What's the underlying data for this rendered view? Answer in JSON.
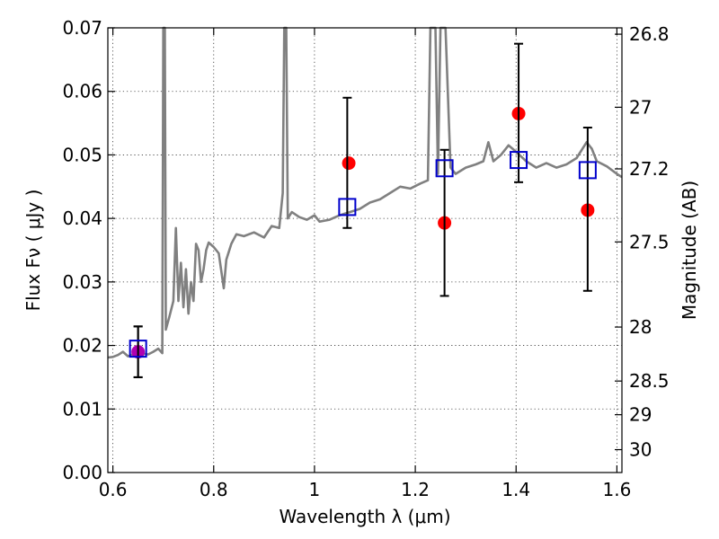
{
  "chart_data": {
    "type": "scatter",
    "xlabel": "Wavelength  λ (μm)",
    "ylabel": "Flux  Fν  ( μJy )",
    "y2label": "Magnitude (AB)",
    "xlim": [
      0.59,
      1.61
    ],
    "ylim": [
      0.0,
      0.07
    ],
    "grid": true,
    "x_ticks": [
      {
        "value": 0.6,
        "label": "0.6"
      },
      {
        "value": 0.8,
        "label": "0.8"
      },
      {
        "value": 1.0,
        "label": "1"
      },
      {
        "value": 1.2,
        "label": "1.2"
      },
      {
        "value": 1.4,
        "label": "1.4"
      },
      {
        "value": 1.6,
        "label": "1.6"
      }
    ],
    "y_ticks": [
      {
        "value": 0.0,
        "label": "0.00"
      },
      {
        "value": 0.01,
        "label": "0.01"
      },
      {
        "value": 0.02,
        "label": "0.02"
      },
      {
        "value": 0.03,
        "label": "0.03"
      },
      {
        "value": 0.04,
        "label": "0.04"
      },
      {
        "value": 0.05,
        "label": "0.05"
      },
      {
        "value": 0.06,
        "label": "0.06"
      },
      {
        "value": 0.07,
        "label": "0.07"
      }
    ],
    "right_ticks": [
      {
        "flux": 0.069,
        "label": "26.8"
      },
      {
        "flux": 0.0575,
        "label": "27"
      },
      {
        "flux": 0.0478,
        "label": "27.2"
      },
      {
        "flux": 0.0363,
        "label": "27.5"
      },
      {
        "flux": 0.0229,
        "label": "28"
      },
      {
        "flux": 0.0144,
        "label": "28.5"
      },
      {
        "flux": 0.0091,
        "label": "29"
      },
      {
        "flux": 0.0036,
        "label": "30"
      }
    ],
    "series": [
      {
        "kind": "line",
        "color": "#808080",
        "points": [
          [
            0.59,
            0.0181
          ],
          [
            0.6,
            0.0182
          ],
          [
            0.61,
            0.0185
          ],
          [
            0.62,
            0.019
          ],
          [
            0.63,
            0.0183
          ],
          [
            0.64,
            0.0186
          ],
          [
            0.65,
            0.019
          ],
          [
            0.66,
            0.0187
          ],
          [
            0.67,
            0.0186
          ],
          [
            0.68,
            0.019
          ],
          [
            0.69,
            0.0195
          ],
          [
            0.698,
            0.0188
          ],
          [
            0.7,
            0.07
          ],
          [
            0.703,
            0.07
          ],
          [
            0.705,
            0.0225
          ],
          [
            0.712,
            0.0245
          ],
          [
            0.72,
            0.027
          ],
          [
            0.725,
            0.0385
          ],
          [
            0.73,
            0.027
          ],
          [
            0.735,
            0.033
          ],
          [
            0.74,
            0.026
          ],
          [
            0.745,
            0.032
          ],
          [
            0.75,
            0.025
          ],
          [
            0.755,
            0.03
          ],
          [
            0.76,
            0.027
          ],
          [
            0.765,
            0.036
          ],
          [
            0.77,
            0.035
          ],
          [
            0.775,
            0.03
          ],
          [
            0.78,
            0.032
          ],
          [
            0.785,
            0.035
          ],
          [
            0.79,
            0.0362
          ],
          [
            0.8,
            0.0355
          ],
          [
            0.81,
            0.0345
          ],
          [
            0.82,
            0.029
          ],
          [
            0.825,
            0.0335
          ],
          [
            0.835,
            0.036
          ],
          [
            0.845,
            0.0375
          ],
          [
            0.86,
            0.0372
          ],
          [
            0.88,
            0.0378
          ],
          [
            0.9,
            0.037
          ],
          [
            0.915,
            0.0388
          ],
          [
            0.93,
            0.0385
          ],
          [
            0.937,
            0.044
          ],
          [
            0.94,
            0.07
          ],
          [
            0.944,
            0.07
          ],
          [
            0.947,
            0.04
          ],
          [
            0.955,
            0.041
          ],
          [
            0.97,
            0.0402
          ],
          [
            0.985,
            0.0398
          ],
          [
            1.0,
            0.0405
          ],
          [
            1.01,
            0.0395
          ],
          [
            1.03,
            0.0398
          ],
          [
            1.05,
            0.0405
          ],
          [
            1.07,
            0.041
          ],
          [
            1.09,
            0.0415
          ],
          [
            1.11,
            0.0425
          ],
          [
            1.13,
            0.043
          ],
          [
            1.15,
            0.044
          ],
          [
            1.17,
            0.045
          ],
          [
            1.19,
            0.0447
          ],
          [
            1.21,
            0.0455
          ],
          [
            1.225,
            0.046
          ],
          [
            1.23,
            0.07
          ],
          [
            1.24,
            0.07
          ],
          [
            1.245,
            0.047
          ],
          [
            1.25,
            0.07
          ],
          [
            1.26,
            0.07
          ],
          [
            1.27,
            0.048
          ],
          [
            1.28,
            0.047
          ],
          [
            1.3,
            0.048
          ],
          [
            1.32,
            0.0485
          ],
          [
            1.335,
            0.049
          ],
          [
            1.345,
            0.052
          ],
          [
            1.355,
            0.049
          ],
          [
            1.37,
            0.05
          ],
          [
            1.385,
            0.0515
          ],
          [
            1.4,
            0.0505
          ],
          [
            1.42,
            0.049
          ],
          [
            1.44,
            0.048
          ],
          [
            1.46,
            0.0487
          ],
          [
            1.48,
            0.048
          ],
          [
            1.5,
            0.0485
          ],
          [
            1.52,
            0.0495
          ],
          [
            1.54,
            0.052
          ],
          [
            1.55,
            0.051
          ],
          [
            1.56,
            0.049
          ],
          [
            1.58,
            0.0482
          ],
          [
            1.6,
            0.047
          ],
          [
            1.61,
            0.0465
          ]
        ]
      },
      {
        "kind": "points",
        "name": "",
        "marker": "circle",
        "color": "#ff0000",
        "points": [
          {
            "x": 0.65,
            "y": 0.019,
            "err_lo": 0.004,
            "err_hi": 0.004,
            "color": "#b000b0"
          },
          {
            "x": 1.068,
            "y": 0.0487,
            "err_lo": 0.0,
            "err_hi": 0.0
          },
          {
            "x": 1.258,
            "y": 0.0393,
            "err_lo": 0.0,
            "err_hi": 0.0
          },
          {
            "x": 1.405,
            "y": 0.0565,
            "err_lo": 0.0,
            "err_hi": 0.0
          },
          {
            "x": 1.542,
            "y": 0.0413,
            "err_lo": 0.0,
            "err_hi": 0.0
          }
        ]
      },
      {
        "kind": "points",
        "name": "",
        "marker": "square",
        "color": "#0000cc",
        "points": [
          {
            "x": 0.65,
            "y": 0.0195,
            "err_lo": 0.0045,
            "err_hi": 0.0035
          },
          {
            "x": 1.065,
            "y": 0.0418,
            "err_lo": 0.0033,
            "err_hi": 0.0172
          },
          {
            "x": 1.258,
            "y": 0.0479,
            "err_lo": 0.0201,
            "err_hi": 0.0029
          },
          {
            "x": 1.405,
            "y": 0.0492,
            "err_lo": 0.0035,
            "err_hi": 0.0183
          },
          {
            "x": 1.542,
            "y": 0.0476,
            "err_lo": 0.019,
            "err_hi": 0.0067
          }
        ]
      }
    ]
  }
}
